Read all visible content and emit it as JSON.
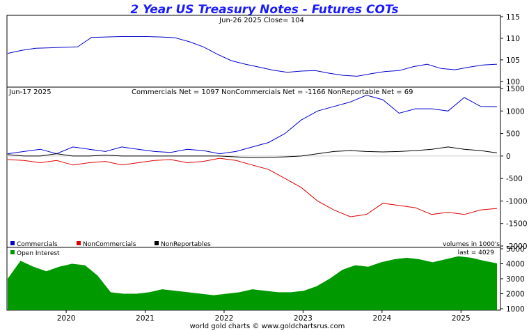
{
  "title": "2 Year US Treasury Notes - Futures COTs",
  "footer": "world gold charts © www.goldchartsrus.com",
  "x_axis": {
    "labels": [
      "2020",
      "2021",
      "2022",
      "2023",
      "2024",
      "2025"
    ]
  },
  "chart_data": [
    {
      "type": "line",
      "panel": "price",
      "header": "Jun-26  2025   Close= 104",
      "ylim": [
        99,
        115
      ],
      "yticks": [
        100,
        105,
        110,
        115
      ],
      "x_start_year": 2019.25,
      "x_end_year": 2025.5,
      "series": [
        {
          "color": "#0000cc",
          "values": [
            106.5,
            107.2,
            107.7,
            107.8,
            107.9,
            108.0,
            110.2,
            110.3,
            110.4,
            110.4,
            110.4,
            110.3,
            110.1,
            109.2,
            108.0,
            106.3,
            104.8,
            104.0,
            103.3,
            102.6,
            102.1,
            102.4,
            102.5,
            101.9,
            101.4,
            101.2,
            101.8,
            102.3,
            102.5,
            103.4,
            104.0,
            103.0,
            102.7,
            103.3,
            103.8,
            104.0
          ]
        }
      ]
    },
    {
      "type": "line",
      "panel": "cot",
      "header_date": "Jun-17  2025",
      "header_stats": "Commercials Net = 1097      NonCommercials Net = -1166    NonReportable Net = 69",
      "ylim": [
        -2000,
        1500
      ],
      "yticks": [
        1500,
        1000,
        500,
        0,
        -500,
        -1000,
        -1500,
        -2000
      ],
      "x_start_year": 2019.25,
      "x_end_year": 2025.5,
      "legend": [
        "Commercials",
        "NonCommercials",
        "NonReportables"
      ],
      "units_note": "volumes in 1000's",
      "series": [
        {
          "name": "Commercials",
          "color": "#0000cc",
          "values": [
            50,
            100,
            150,
            50,
            200,
            150,
            100,
            200,
            150,
            100,
            80,
            150,
            120,
            50,
            100,
            200,
            300,
            500,
            800,
            1000,
            1100,
            1200,
            1350,
            1250,
            950,
            1050,
            1050,
            1000,
            1300,
            1100,
            1097
          ]
        },
        {
          "name": "NonCommercials",
          "color": "#dd0000",
          "values": [
            -80,
            -100,
            -150,
            -100,
            -200,
            -150,
            -120,
            -200,
            -150,
            -100,
            -80,
            -150,
            -120,
            -50,
            -100,
            -200,
            -300,
            -500,
            -700,
            -1000,
            -1200,
            -1350,
            -1300,
            -1050,
            -1100,
            -1150,
            -1300,
            -1250,
            -1300,
            -1200,
            -1166
          ]
        },
        {
          "name": "NonReportables",
          "color": "#000000",
          "values": [
            30,
            0,
            0,
            50,
            0,
            0,
            20,
            0,
            0,
            0,
            0,
            0,
            0,
            0,
            -20,
            -40,
            -30,
            -20,
            0,
            50,
            100,
            120,
            100,
            90,
            100,
            120,
            150,
            200,
            150,
            120,
            69
          ]
        }
      ]
    },
    {
      "type": "area",
      "panel": "open_interest",
      "legend": [
        "Open Interest"
      ],
      "last_label": "last = 4029",
      "ylim": [
        1000,
        5000
      ],
      "yticks": [
        2000,
        3000,
        4000,
        5000,
        1000
      ],
      "x_start_year": 2019.25,
      "x_end_year": 2025.5,
      "series": [
        {
          "name": "Open Interest",
          "color": "#009900",
          "values": [
            3000,
            4200,
            3800,
            3500,
            3800,
            4000,
            3900,
            3200,
            2100,
            2000,
            2000,
            2100,
            2300,
            2200,
            2100,
            2000,
            1900,
            2000,
            2100,
            2300,
            2200,
            2100,
            2100,
            2200,
            2500,
            3000,
            3600,
            3900,
            3800,
            4100,
            4300,
            4400,
            4300,
            4100,
            4300,
            4500,
            4400,
            4200,
            4029
          ]
        }
      ]
    }
  ]
}
